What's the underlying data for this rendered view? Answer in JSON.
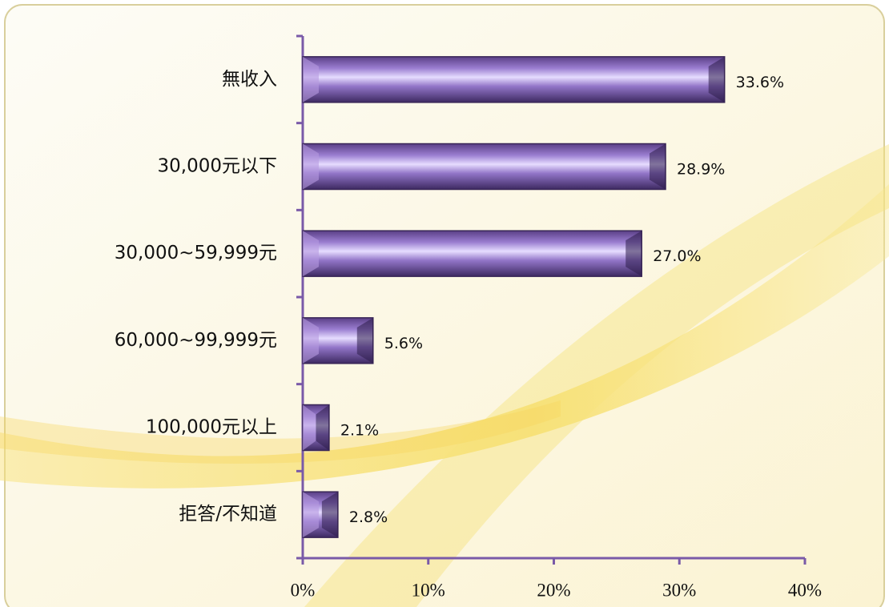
{
  "chart_data": {
    "type": "bar",
    "orientation": "horizontal",
    "categories": [
      "無收入",
      "30,000元以下",
      "30,000~59,999元",
      "60,000~99,999元",
      "100,000元以上",
      "拒答/不知道"
    ],
    "values": [
      33.6,
      28.9,
      27.0,
      5.6,
      2.1,
      2.8
    ],
    "value_labels": [
      "33.6%",
      "28.9%",
      "27.0%",
      "5.6%",
      "2.1%",
      "2.8%"
    ],
    "color": "#8a6bbf",
    "xlim": [
      0,
      40
    ],
    "xticks": [
      {
        "value": 0,
        "label": "0%"
      },
      {
        "value": 10,
        "label": "10%"
      },
      {
        "value": 20,
        "label": "20%"
      },
      {
        "value": 30,
        "label": "30%"
      },
      {
        "value": 40,
        "label": "40%"
      }
    ]
  }
}
